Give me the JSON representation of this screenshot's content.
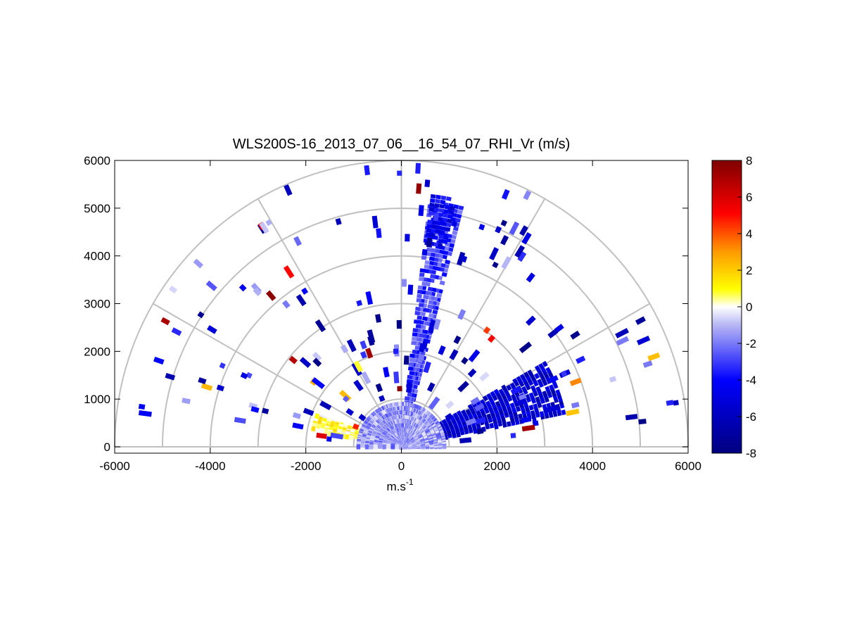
{
  "chart_data": {
    "type": "heatmap",
    "subtype": "polar-sector",
    "title": "WLS200S-16_2013_07_06__16_54_07_RHI_Vr (m/s)",
    "xlabel": "m.s",
    "xlabel_superscript": "-1",
    "ylabel": "",
    "xlim": [
      -6000,
      6000
    ],
    "ylim": [
      0,
      6000
    ],
    "xticks": [
      "-6000",
      "-4000",
      "-2000",
      "0",
      "2000",
      "4000",
      "6000"
    ],
    "yticks": [
      "0",
      "1000",
      "2000",
      "3000",
      "4000",
      "5000",
      "6000"
    ],
    "polar_grid": {
      "rings_m": [
        1000,
        2000,
        3000,
        4000,
        5000,
        6000
      ],
      "spokes_deg": [
        0,
        30,
        60,
        90,
        120,
        150,
        180
      ]
    },
    "colorbar": {
      "range": [
        -8,
        8
      ],
      "ticks": [
        "8",
        "6",
        "4",
        "2",
        "0",
        "-2",
        "-4",
        "-6",
        "-8"
      ],
      "stops": [
        "#00007f",
        "#0000ff",
        "#b9b9f5",
        "#ffffff",
        "#ffff00",
        "#ff9900",
        "#ff0000",
        "#7f0000"
      ]
    },
    "clusters": [
      {
        "region": "low-elevation east beam, 0-3.5 km",
        "az_from": 12,
        "az_to": 30,
        "r_from": 500,
        "r_to": 3500,
        "value": -5.5
      },
      {
        "region": "near-vertical beam",
        "az_from": 76,
        "az_to": 84,
        "r_from": 300,
        "r_to": 5200,
        "value": -3
      },
      {
        "region": "upper plume",
        "az_from": 78,
        "az_to": 84,
        "r_from": 4300,
        "r_to": 5300,
        "value": -4.5
      },
      {
        "region": "west low-level return",
        "az_from": 160,
        "az_to": 170,
        "r_from": 800,
        "r_to": 1900,
        "value": 0.8
      },
      {
        "region": "near-surface clutter",
        "az_from": 0,
        "az_to": 180,
        "r_from": 0,
        "r_to": 900,
        "value": -1.5
      }
    ]
  }
}
